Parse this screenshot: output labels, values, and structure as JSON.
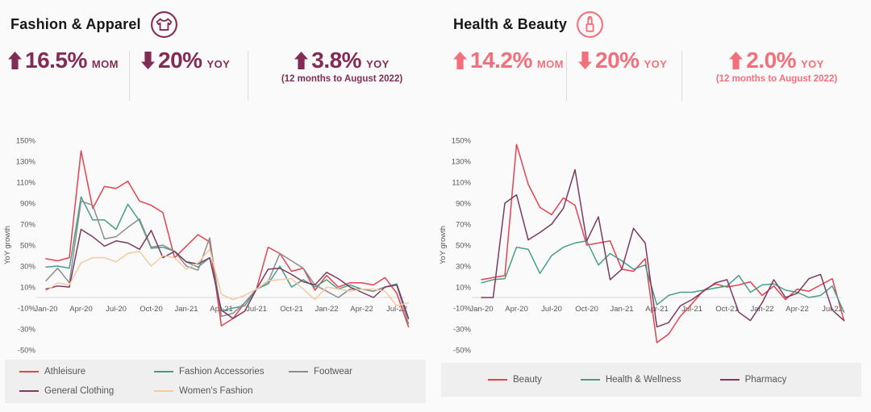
{
  "panels": [
    {
      "title": "Fashion & Apparel",
      "icon": "tshirt-icon",
      "accent": "#822b55",
      "stats": [
        {
          "direction": "up",
          "value": "16.5%",
          "unit": "MOM",
          "note": ""
        },
        {
          "direction": "down",
          "value": "20%",
          "unit": "YOY",
          "note": ""
        },
        {
          "direction": "up",
          "value": "3.8%",
          "unit": "YOY",
          "note": "(12 months to August 2022)"
        }
      ],
      "legend": [
        {
          "label": "Athleisure",
          "color": "#e2434e"
        },
        {
          "label": "Fashion Accessories",
          "color": "#469e8a"
        },
        {
          "label": "Footwear",
          "color": "#8d8d8f"
        },
        {
          "label": "General Clothing",
          "color": "#7a3b60"
        },
        {
          "label": "Women's Fashion",
          "color": "#f5c9a2"
        }
      ]
    },
    {
      "title": "Health & Beauty",
      "icon": "lipstick-icon",
      "accent": "#f2707b",
      "stats": [
        {
          "direction": "up",
          "value": "14.2%",
          "unit": "MOM",
          "note": ""
        },
        {
          "direction": "down",
          "value": "20%",
          "unit": "YOY",
          "note": ""
        },
        {
          "direction": "up",
          "value": "2.0%",
          "unit": "YOY",
          "note": "(12 months to August 2022)"
        }
      ],
      "legend": [
        {
          "label": "Beauty",
          "color": "#e2434e"
        },
        {
          "label": "Health & Wellness",
          "color": "#469e8a"
        },
        {
          "label": "Pharmacy",
          "color": "#7a3b60"
        }
      ]
    }
  ],
  "chart_data": [
    {
      "type": "line",
      "title": "Fashion & Apparel",
      "ylabel": "YoY growth",
      "ylim": [
        -50,
        150
      ],
      "yticks": [
        150,
        130,
        110,
        90,
        70,
        50,
        30,
        10,
        -10,
        -30,
        -50
      ],
      "grid": "zero-line-only",
      "legend_position": "bottom",
      "x_tick_every": 3,
      "x": [
        "Jan-20",
        "Feb-20",
        "Mar-20",
        "Apr-20",
        "May-20",
        "Jun-20",
        "Jul-20",
        "Aug-20",
        "Sep-20",
        "Oct-20",
        "Nov-20",
        "Dec-20",
        "Jan-21",
        "Feb-21",
        "Mar-21",
        "Apr-21",
        "May-21",
        "Jun-21",
        "Jul-21",
        "Aug-21",
        "Sep-21",
        "Oct-21",
        "Nov-21",
        "Dec-21",
        "Jan-22",
        "Feb-22",
        "Mar-22",
        "Apr-22",
        "May-22",
        "Jun-22",
        "Jul-22",
        "Aug-22"
      ],
      "series": [
        {
          "name": "Athleisure",
          "color": "#e2434e",
          "values": [
            37,
            35,
            38,
            140,
            85,
            106,
            104,
            111,
            92,
            88,
            81,
            38,
            49,
            60,
            53,
            -27,
            -20,
            -5,
            8,
            48,
            42,
            25,
            28,
            7,
            21,
            10,
            14,
            14,
            12,
            19,
            4,
            -28
          ]
        },
        {
          "name": "Fashion Accessories",
          "color": "#469e8a",
          "values": [
            29,
            30,
            28,
            96,
            74,
            74,
            65,
            89,
            73,
            47,
            48,
            44,
            34,
            29,
            38,
            -13,
            -10,
            -8,
            8,
            13,
            30,
            10,
            17,
            10,
            17,
            8,
            12,
            8,
            6,
            10,
            13,
            -20
          ]
        },
        {
          "name": "Footwear",
          "color": "#8d8d8f",
          "values": [
            16,
            28,
            14,
            92,
            88,
            56,
            58,
            67,
            75,
            48,
            50,
            44,
            30,
            26,
            57,
            -18,
            -15,
            -5,
            8,
            15,
            42,
            35,
            28,
            12,
            6,
            0,
            8,
            8,
            6,
            10,
            12,
            -25
          ]
        },
        {
          "name": "General Clothing",
          "color": "#7a3b60",
          "values": [
            8,
            11,
            10,
            65,
            58,
            49,
            54,
            52,
            46,
            64,
            38,
            44,
            34,
            32,
            38,
            -12,
            -20,
            -13,
            8,
            27,
            28,
            22,
            15,
            12,
            24,
            18,
            10,
            5,
            0,
            10,
            12,
            -20
          ]
        },
        {
          "name": "Women's Fashion",
          "color": "#f5c9a2",
          "values": [
            6,
            14,
            12,
            33,
            38,
            38,
            34,
            42,
            44,
            30,
            40,
            38,
            27,
            33,
            46,
            3,
            -2,
            2,
            8,
            16,
            17,
            18,
            8,
            -2,
            10,
            8,
            6,
            8,
            8,
            6,
            -8,
            -5
          ]
        }
      ]
    },
    {
      "type": "line",
      "title": "Health & Beauty",
      "ylabel": "YoY growth",
      "ylim": [
        -50,
        150
      ],
      "yticks": [
        150,
        130,
        110,
        90,
        70,
        50,
        30,
        10,
        -10,
        -30,
        -50
      ],
      "grid": "zero-line-only",
      "legend_position": "bottom",
      "x_tick_every": 3,
      "x": [
        "Jan-20",
        "Feb-20",
        "Mar-20",
        "Apr-20",
        "May-20",
        "Jun-20",
        "Jul-20",
        "Aug-20",
        "Sep-20",
        "Oct-20",
        "Nov-20",
        "Dec-20",
        "Jan-21",
        "Feb-21",
        "Mar-21",
        "Apr-21",
        "May-21",
        "Jun-21",
        "Jul-21",
        "Aug-21",
        "Sep-21",
        "Oct-21",
        "Nov-21",
        "Dec-21",
        "Jan-22",
        "Feb-22",
        "Mar-22",
        "Apr-22",
        "May-22",
        "Jun-22",
        "Jul-22",
        "Aug-22"
      ],
      "series": [
        {
          "name": "Beauty",
          "color": "#e2434e",
          "values": [
            17,
            19,
            21,
            146,
            108,
            86,
            79,
            95,
            88,
            50,
            52,
            54,
            27,
            25,
            37,
            -43,
            -35,
            -18,
            -6,
            7,
            13,
            10,
            12,
            15,
            2,
            11,
            -2,
            8,
            6,
            12,
            18,
            -22
          ]
        },
        {
          "name": "Health & Wellness",
          "color": "#469e8a",
          "values": [
            14,
            17,
            18,
            48,
            46,
            23,
            40,
            48,
            52,
            54,
            31,
            42,
            35,
            27,
            31,
            -7,
            2,
            5,
            5,
            7,
            9,
            11,
            21,
            5,
            12,
            13,
            7,
            5,
            0,
            2,
            11,
            -14
          ]
        },
        {
          "name": "Pharmacy",
          "color": "#7a3b60",
          "values": [
            0,
            0,
            90,
            98,
            55,
            62,
            70,
            85,
            122,
            54,
            77,
            17,
            27,
            66,
            52,
            -28,
            -24,
            -8,
            -2,
            6,
            14,
            17,
            -14,
            -22,
            -5,
            17,
            0,
            4,
            18,
            22,
            -12,
            -22
          ]
        }
      ]
    }
  ]
}
